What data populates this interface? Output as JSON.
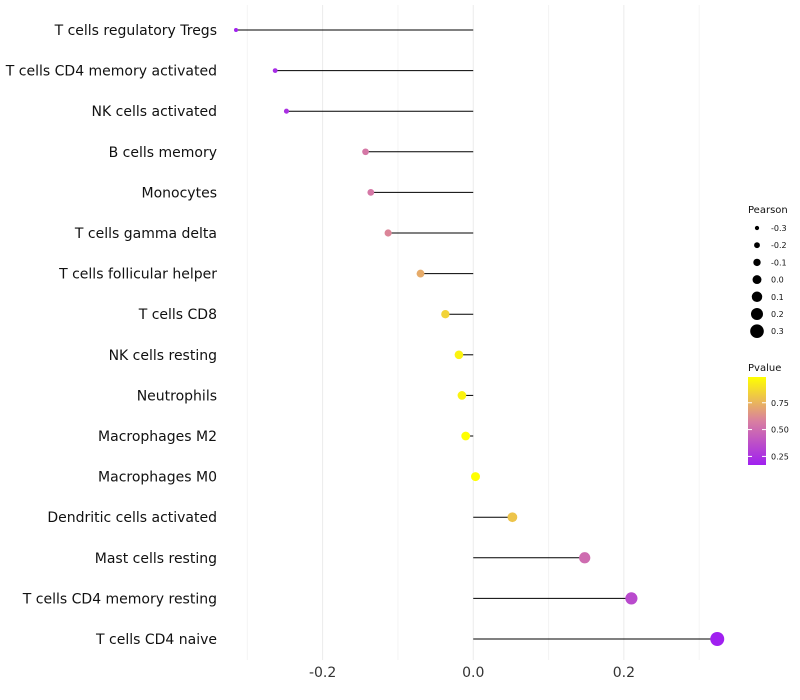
{
  "chart_data": {
    "type": "lollipop",
    "xlim": [
      -0.315,
      0.325
    ],
    "x_ticks": [
      -0.2,
      0.0,
      0.2
    ],
    "x_tick_labels": [
      "-0.2",
      "0.0",
      "0.2"
    ],
    "grid": true,
    "categories": [
      "T cells regulatory  Tregs",
      "T cells CD4 memory activated",
      "NK cells activated",
      "B cells memory",
      "Monocytes",
      "T cells gamma delta",
      "T cells follicular helper",
      "T cells CD8",
      "NK cells resting",
      "Neutrophils",
      "Macrophages M2",
      "Macrophages M0",
      "Dendritic cells activated",
      "Mast cells resting",
      "T cells CD4 memory resting",
      "T cells CD4 naive"
    ],
    "pearson": [
      -0.315,
      -0.263,
      -0.248,
      -0.143,
      -0.136,
      -0.113,
      -0.07,
      -0.037,
      -0.019,
      -0.015,
      -0.01,
      0.003,
      0.052,
      0.148,
      0.21,
      0.324
    ],
    "pvalue": [
      0.18,
      0.22,
      0.24,
      0.55,
      0.55,
      0.6,
      0.72,
      0.85,
      0.95,
      0.95,
      0.99,
      0.99,
      0.8,
      0.5,
      0.35,
      0.17
    ],
    "legend_size": {
      "title": "Pearson",
      "values": [
        -0.3,
        -0.2,
        -0.1,
        0.0,
        0.1,
        0.2,
        0.3
      ],
      "labels": [
        "-0.3",
        "-0.2",
        "-0.1",
        "0.0",
        "0.1",
        "0.2",
        "0.3"
      ],
      "position": "right"
    },
    "legend_color": {
      "title": "Pvalue",
      "breaks": [
        0.75,
        0.5,
        0.25
      ],
      "labels": [
        "0.75",
        "0.50",
        "0.25"
      ],
      "range": [
        0.17,
        0.99
      ],
      "low_color": "#a020f0",
      "mid_color": "#d97fa0",
      "high_color": "#ffff00",
      "position": "right"
    }
  }
}
